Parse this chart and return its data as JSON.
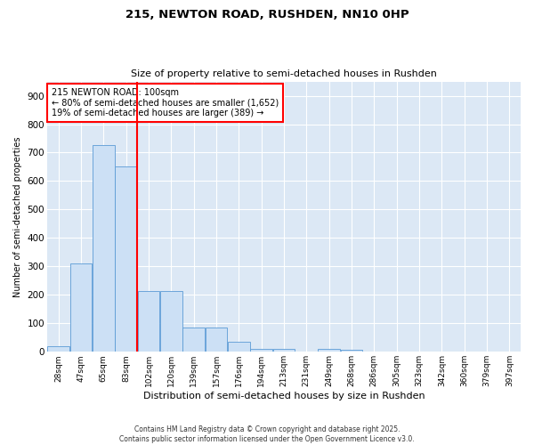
{
  "title": "215, NEWTON ROAD, RUSHDEN, NN10 0HP",
  "subtitle": "Size of property relative to semi-detached houses in Rushden",
  "xlabel": "Distribution of semi-detached houses by size in Rushden",
  "ylabel": "Number of semi-detached properties",
  "categories": [
    "28sqm",
    "47sqm",
    "65sqm",
    "83sqm",
    "102sqm",
    "120sqm",
    "139sqm",
    "157sqm",
    "176sqm",
    "194sqm",
    "213sqm",
    "231sqm",
    "249sqm",
    "268sqm",
    "286sqm",
    "305sqm",
    "323sqm",
    "342sqm",
    "360sqm",
    "379sqm",
    "397sqm"
  ],
  "values": [
    20,
    310,
    725,
    650,
    215,
    215,
    85,
    85,
    35,
    10,
    10,
    0,
    10,
    7,
    0,
    0,
    0,
    0,
    0,
    0,
    0
  ],
  "bar_color": "#cce0f5",
  "bar_edge_color": "#5b9bd5",
  "vline_color": "red",
  "annotation_title": "215 NEWTON ROAD: 100sqm",
  "annotation_line1": "← 80% of semi-detached houses are smaller (1,652)",
  "annotation_line2": "19% of semi-detached houses are larger (389) →",
  "annotation_box_color": "red",
  "ylim": [
    0,
    950
  ],
  "yticks": [
    0,
    100,
    200,
    300,
    400,
    500,
    600,
    700,
    800,
    900
  ],
  "background_color": "#dce8f5",
  "grid_color": "white",
  "footer_line1": "Contains HM Land Registry data © Crown copyright and database right 2025.",
  "footer_line2": "Contains public sector information licensed under the Open Government Licence v3.0."
}
